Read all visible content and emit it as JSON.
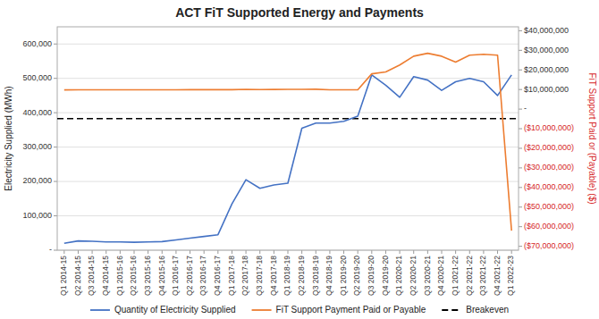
{
  "chart_data": {
    "type": "line",
    "title": "ACT FiT Supported Energy and Payments",
    "ylabel": "Electricity Supplied (MWh)",
    "y2label": "FiT Support Paid or (Payable) ($)",
    "categories": [
      "Q1 2014-15",
      "Q2 2014-15",
      "Q3 2014-15",
      "Q4 2014-15",
      "Q1 2015-16",
      "Q2 2015-16",
      "Q3 2015-16",
      "Q4 2015-16",
      "Q1 2016-17",
      "Q2 2016-17",
      "Q3 2016-17",
      "Q4 2016-17",
      "Q1 2017-18",
      "Q2 2017-18",
      "Q3 2017-18",
      "Q4 2017-18",
      "Q1 2018-19",
      "Q2 2018-19",
      "Q3 2018-19",
      "Q4 2018-19",
      "Q1 2019-20",
      "Q2 2019-20",
      "Q3 2019-20",
      "Q4 2019-20",
      "Q1 2020-21",
      "Q2 2020-21",
      "Q3 2020-21",
      "Q4 2020-21",
      "Q1 2021-22",
      "Q2 2021-22",
      "Q3 2021-22",
      "Q4 2021-22",
      "Q1 2022-23"
    ],
    "series": [
      {
        "name": "Quantity of Electricity Supplied",
        "color": "#4472C4",
        "values": [
          20000,
          27000,
          26000,
          24000,
          24000,
          23000,
          24000,
          25000,
          30000,
          35000,
          40000,
          45000,
          135000,
          205000,
          180000,
          190000,
          195000,
          355000,
          370000,
          370000,
          375000,
          390000,
          510000,
          480000,
          445000,
          505000,
          495000,
          465000,
          490000,
          500000,
          490000,
          450000,
          510000
        ]
      },
      {
        "name": "FiT Support Payment Paid or Payable",
        "color": "#ED7D31",
        "axis": "y2",
        "values": [
          9800000,
          9820000,
          9830000,
          9820000,
          9850000,
          9860000,
          9870000,
          9870000,
          9880000,
          9890000,
          9900000,
          9910000,
          9920000,
          10050000,
          10000000,
          10020000,
          10050000,
          10100000,
          10150000,
          9880000,
          9850000,
          9860000,
          18000000,
          19000000,
          22500000,
          27000000,
          28500000,
          27000000,
          24000000,
          27500000,
          28000000,
          27500000,
          -62000000
        ]
      }
    ],
    "hlines": [
      {
        "name": "Breakeven",
        "value": 383000,
        "color": "#000000",
        "line_style": "dashed"
      }
    ],
    "ylim": [
      0,
      650000
    ],
    "yticks": [
      {
        "value": 0,
        "label": "-"
      },
      {
        "value": 100000,
        "label": "100,000"
      },
      {
        "value": 200000,
        "label": "200,000"
      },
      {
        "value": 300000,
        "label": "300,000"
      },
      {
        "value": 400000,
        "label": "400,000"
      },
      {
        "value": 500000,
        "label": "500,000"
      },
      {
        "value": 600000,
        "label": "600,000"
      }
    ],
    "y2lim": [
      -72000000,
      42000000
    ],
    "y2ticks": [
      {
        "value": 40000000,
        "label": "$40,000,000"
      },
      {
        "value": 30000000,
        "label": "$30,000,000"
      },
      {
        "value": 20000000,
        "label": "$20,000,000"
      },
      {
        "value": 10000000,
        "label": "$10,000,000"
      },
      {
        "value": 0,
        "label": "-"
      },
      {
        "value": -10000000,
        "label": "($10,000,000)"
      },
      {
        "value": -20000000,
        "label": "($20,000,000)"
      },
      {
        "value": -30000000,
        "label": "($30,000,000)"
      },
      {
        "value": -40000000,
        "label": "($40,000,000)"
      },
      {
        "value": -50000000,
        "label": "($50,000,000)"
      },
      {
        "value": -60000000,
        "label": "($60,000,000)"
      },
      {
        "value": -70000000,
        "label": "($70,000,000)"
      }
    ],
    "grid": true,
    "legend": "bottom"
  }
}
